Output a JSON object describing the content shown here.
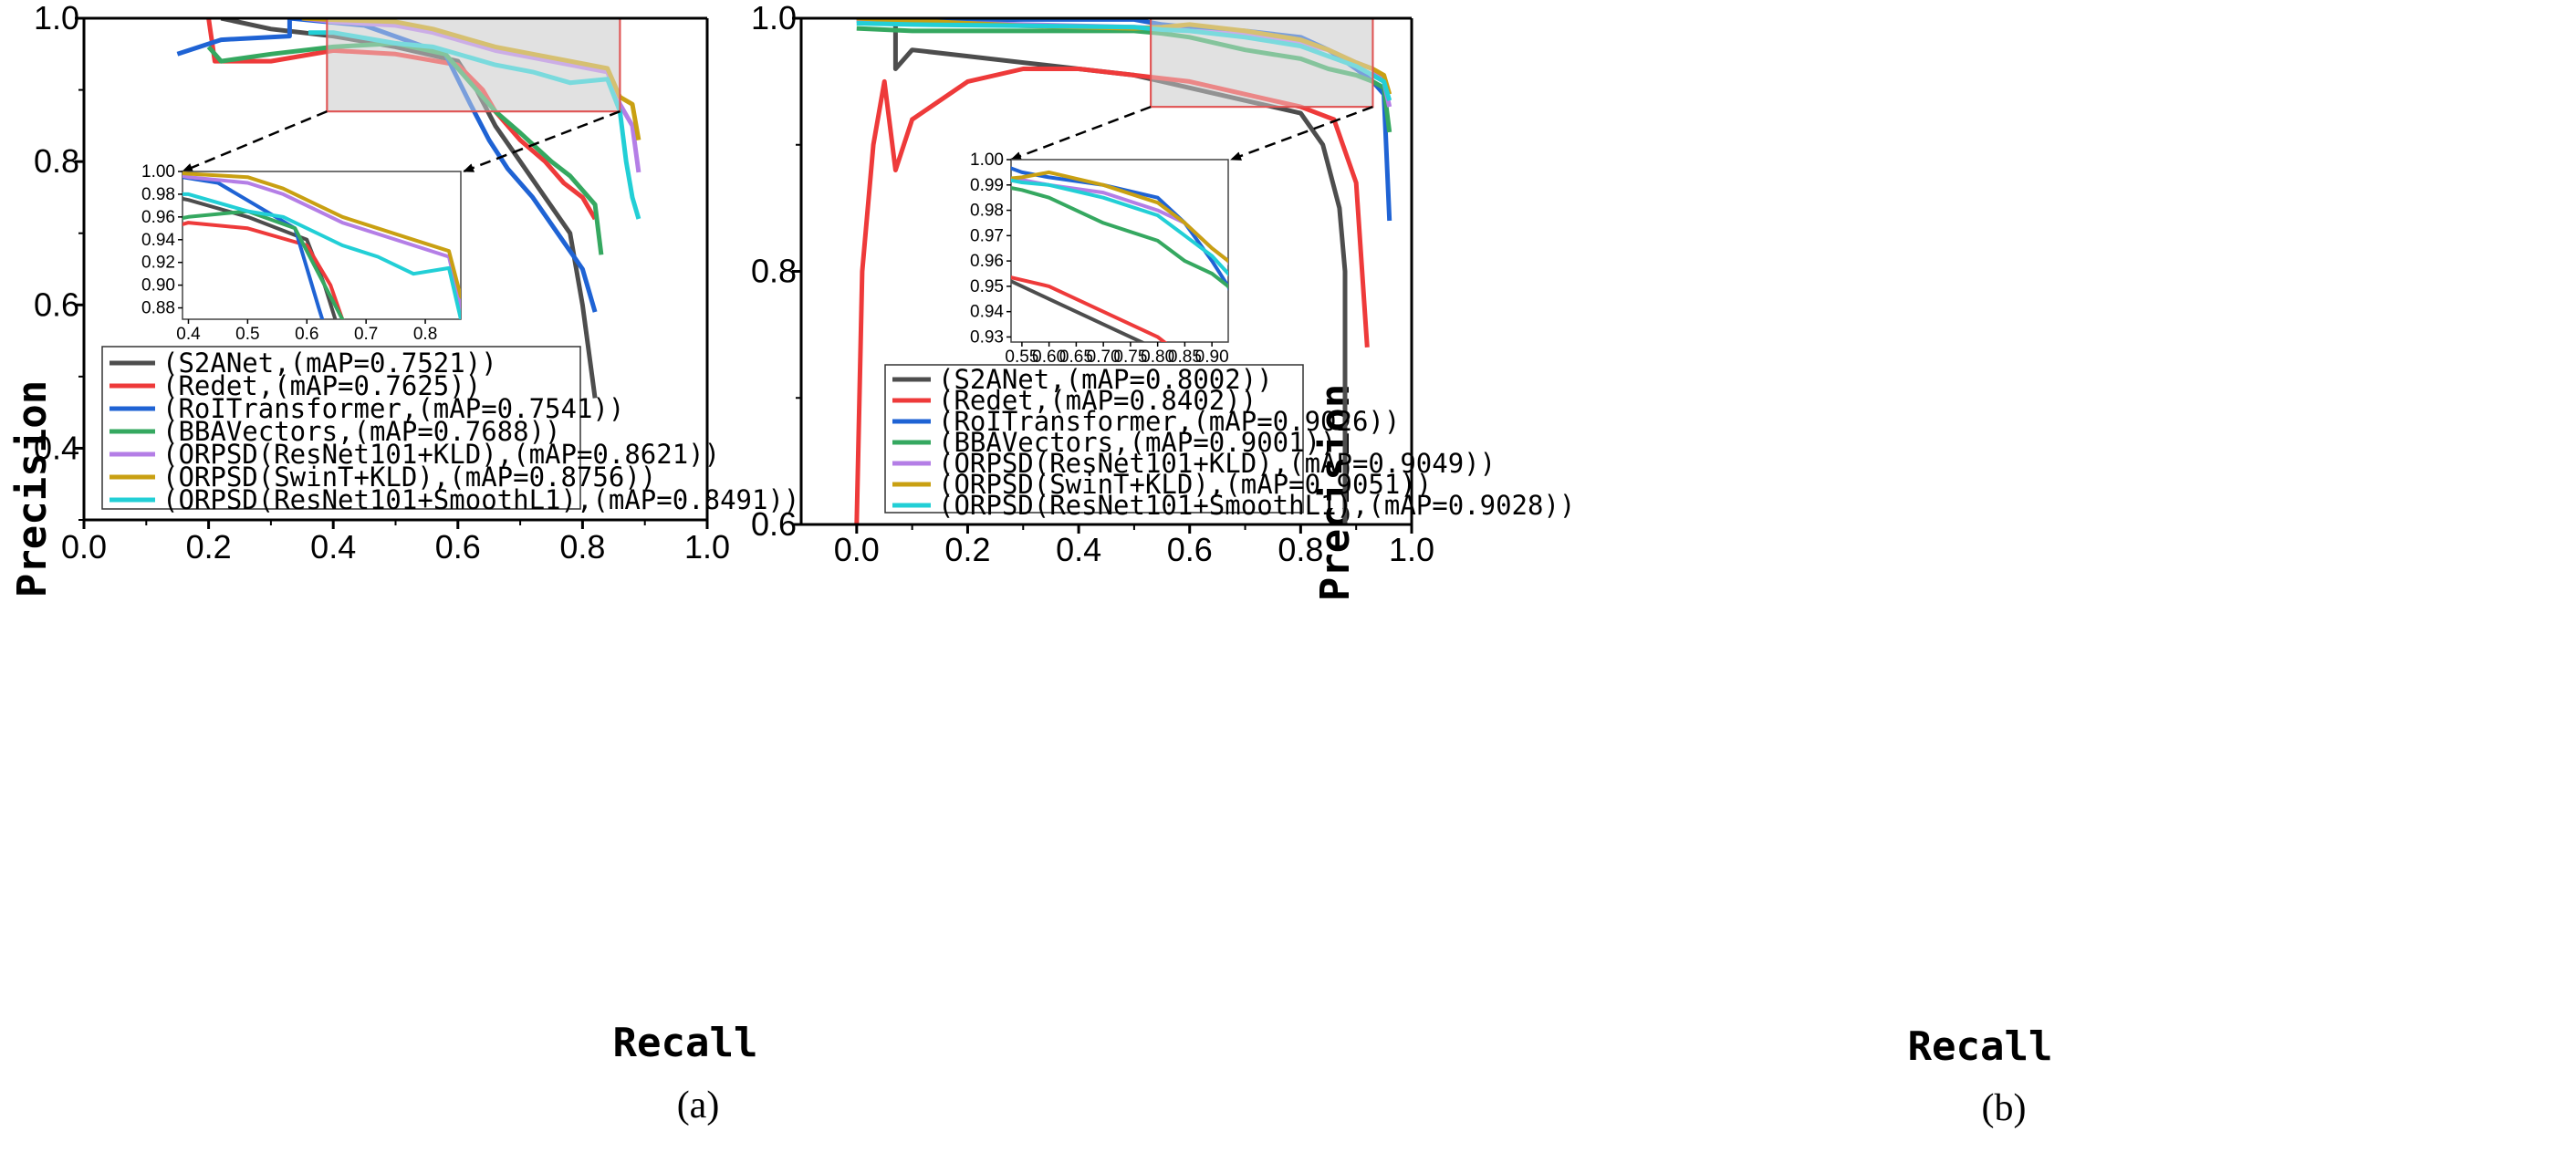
{
  "colors": {
    "S2ANet": "#4d4d4d",
    "Redet": "#ee3a3a",
    "RoITransformer": "#1f63d4",
    "BBAVectors": "#35a860",
    "ORPSD_R101_KLD": "#b47ee6",
    "ORPSD_SwinT_KLD": "#c9a012",
    "ORPSD_R101_SmoothL1": "#22cfd6"
  },
  "chart_data": [
    {
      "type": "line",
      "caption": "(a)",
      "xlabel": "Recall",
      "ylabel": "Precision",
      "xlim": [
        0.0,
        1.0
      ],
      "ylim": [
        0.3,
        1.0
      ],
      "xticks": [
        "0.0",
        "0.2",
        "0.4",
        "0.6",
        "0.8",
        "1.0"
      ],
      "yticks": [
        "0.4",
        "0.6",
        "0.8",
        "1.0"
      ],
      "legend": [
        "(S2ANet,(mAP=0.7521))",
        "(Redet,(mAP=0.7625))",
        "(RoITransformer,(mAP=0.7541))",
        "(BBAVectors,(mAP=0.7688))",
        "(ORPSD(ResNet101+KLD),(mAP=0.8621))",
        "(ORPSD(SwinT+KLD),(mAP=0.8756))",
        "(ORPSD(ResNet101+SmoothL1),(mAP=0.8491))"
      ],
      "series": [
        {
          "name": "S2ANet",
          "x": [
            0.22,
            0.3,
            0.4,
            0.5,
            0.6,
            0.63,
            0.66,
            0.7,
            0.74,
            0.78,
            0.8,
            0.82
          ],
          "y": [
            1.0,
            0.985,
            0.975,
            0.96,
            0.94,
            0.9,
            0.85,
            0.8,
            0.75,
            0.7,
            0.6,
            0.47
          ]
        },
        {
          "name": "Redet",
          "x": [
            0.2,
            0.21,
            0.3,
            0.4,
            0.5,
            0.6,
            0.64,
            0.66,
            0.7,
            0.74,
            0.77,
            0.8,
            0.82
          ],
          "y": [
            1.0,
            0.94,
            0.94,
            0.955,
            0.95,
            0.935,
            0.9,
            0.87,
            0.83,
            0.8,
            0.77,
            0.75,
            0.72
          ]
        },
        {
          "name": "RoITransformer",
          "x": [
            0.15,
            0.22,
            0.33,
            0.33,
            0.45,
            0.58,
            0.62,
            0.65,
            0.68,
            0.72,
            0.76,
            0.8,
            0.82
          ],
          "y": [
            0.95,
            0.97,
            0.975,
            1.0,
            0.99,
            0.95,
            0.88,
            0.83,
            0.79,
            0.75,
            0.7,
            0.65,
            0.59
          ]
        },
        {
          "name": "BBAVectors",
          "x": [
            0.2,
            0.22,
            0.3,
            0.4,
            0.5,
            0.58,
            0.63,
            0.66,
            0.7,
            0.75,
            0.78,
            0.82,
            0.83
          ],
          "y": [
            0.96,
            0.94,
            0.95,
            0.96,
            0.965,
            0.95,
            0.9,
            0.87,
            0.84,
            0.8,
            0.78,
            0.74,
            0.67
          ]
        },
        {
          "name": "ORPSD(ResNet101+KLD)",
          "x": [
            0.35,
            0.4,
            0.5,
            0.56,
            0.62,
            0.66,
            0.72,
            0.78,
            0.84,
            0.86,
            0.88,
            0.89
          ],
          "y": [
            1.0,
            0.995,
            0.99,
            0.98,
            0.965,
            0.955,
            0.945,
            0.935,
            0.925,
            0.88,
            0.85,
            0.785
          ]
        },
        {
          "name": "ORPSD(SwinT+KLD)",
          "x": [
            0.35,
            0.4,
            0.5,
            0.56,
            0.62,
            0.66,
            0.72,
            0.78,
            0.84,
            0.86,
            0.88,
            0.89
          ],
          "y": [
            1.0,
            0.998,
            0.995,
            0.985,
            0.97,
            0.96,
            0.95,
            0.94,
            0.93,
            0.89,
            0.88,
            0.83
          ]
        },
        {
          "name": "ORPSD(ResNet101+SmoothL1)",
          "x": [
            0.36,
            0.4,
            0.5,
            0.56,
            0.62,
            0.66,
            0.72,
            0.78,
            0.84,
            0.86,
            0.87,
            0.88,
            0.89
          ],
          "y": [
            0.98,
            0.98,
            0.965,
            0.96,
            0.945,
            0.935,
            0.925,
            0.91,
            0.915,
            0.87,
            0.8,
            0.75,
            0.72
          ]
        }
      ],
      "zoom_region": {
        "x": [
          0.39,
          0.86
        ],
        "y": [
          0.87,
          1.0
        ]
      },
      "inset": {
        "xlim": [
          0.39,
          0.86
        ],
        "ylim": [
          0.87,
          1.0
        ],
        "xticks": [
          "0.4",
          "0.5",
          "0.6",
          "0.7",
          "0.8"
        ],
        "yticks": [
          "0.88",
          "0.90",
          "0.92",
          "0.94",
          "0.96",
          "0.98",
          "1.00"
        ]
      }
    },
    {
      "type": "line",
      "caption": "(b)",
      "xlabel": "Recall",
      "ylabel": "Precision",
      "xlim": [
        -0.1,
        1.0
      ],
      "ylim": [
        0.6,
        1.0
      ],
      "xticks": [
        "0.0",
        "0.2",
        "0.4",
        "0.6",
        "0.8",
        "1.0"
      ],
      "yticks": [
        "0.6",
        "0.8",
        "1.0"
      ],
      "legend": [
        "(S2ANet,(mAP=0.8002))",
        "(Redet,(mAP=0.8402))",
        "(RoITransformer,(mAP=0.9026))",
        "(BBAVectors,(mAP=0.9001))",
        "(ORPSD(ResNet101+KLD),(mAP=0.9049))",
        "(ORPSD(SwinT+KLD),(mAP=0.9051))",
        "(ORPSD(ResNet101+SmoothL1),(mAP=0.9028))"
      ],
      "series": [
        {
          "name": "S2ANet",
          "x": [
            0.07,
            0.07,
            0.1,
            0.2,
            0.3,
            0.4,
            0.5,
            0.6,
            0.7,
            0.8,
            0.84,
            0.87,
            0.88,
            0.88
          ],
          "y": [
            1.0,
            0.96,
            0.975,
            0.97,
            0.965,
            0.96,
            0.955,
            0.945,
            0.935,
            0.925,
            0.9,
            0.85,
            0.8,
            0.6
          ]
        },
        {
          "name": "Redet",
          "x": [
            0.0,
            0.01,
            0.03,
            0.05,
            0.07,
            0.1,
            0.2,
            0.3,
            0.4,
            0.5,
            0.6,
            0.7,
            0.8,
            0.86,
            0.9,
            0.92
          ],
          "y": [
            0.6,
            0.8,
            0.9,
            0.95,
            0.88,
            0.92,
            0.95,
            0.96,
            0.96,
            0.955,
            0.95,
            0.94,
            0.93,
            0.92,
            0.87,
            0.74
          ]
        },
        {
          "name": "RoITransformer",
          "x": [
            0.0,
            0.1,
            0.3,
            0.5,
            0.55,
            0.6,
            0.7,
            0.8,
            0.85,
            0.9,
            0.93,
            0.95,
            0.96
          ],
          "y": [
            0.998,
            0.998,
            0.999,
            0.999,
            0.995,
            0.993,
            0.99,
            0.985,
            0.975,
            0.96,
            0.95,
            0.94,
            0.84
          ]
        },
        {
          "name": "BBAVectors",
          "x": [
            0.0,
            0.1,
            0.3,
            0.5,
            0.55,
            0.6,
            0.7,
            0.8,
            0.85,
            0.9,
            0.93,
            0.95,
            0.96
          ],
          "y": [
            0.992,
            0.99,
            0.99,
            0.99,
            0.988,
            0.985,
            0.975,
            0.968,
            0.96,
            0.955,
            0.95,
            0.945,
            0.91
          ]
        },
        {
          "name": "ORPSD(ResNet101+KLD)",
          "x": [
            0.0,
            0.1,
            0.3,
            0.5,
            0.55,
            0.6,
            0.7,
            0.8,
            0.85,
            0.9,
            0.93,
            0.95,
            0.96
          ],
          "y": [
            0.998,
            0.997,
            0.995,
            0.993,
            0.992,
            0.99,
            0.987,
            0.98,
            0.975,
            0.965,
            0.96,
            0.95,
            0.93
          ]
        },
        {
          "name": "ORPSD(SwinT+KLD)",
          "x": [
            0.0,
            0.1,
            0.3,
            0.5,
            0.55,
            0.6,
            0.7,
            0.8,
            0.85,
            0.9,
            0.93,
            0.95,
            0.96
          ],
          "y": [
            1.0,
            0.998,
            0.994,
            0.992,
            0.993,
            0.995,
            0.99,
            0.983,
            0.975,
            0.965,
            0.96,
            0.955,
            0.94
          ]
        },
        {
          "name": "ORPSD(ResNet101+SmoothL1)",
          "x": [
            0.0,
            0.1,
            0.3,
            0.5,
            0.55,
            0.6,
            0.7,
            0.8,
            0.85,
            0.9,
            0.93,
            0.95,
            0.96
          ],
          "y": [
            0.996,
            0.995,
            0.994,
            0.993,
            0.991,
            0.99,
            0.985,
            0.978,
            0.97,
            0.962,
            0.955,
            0.95,
            0.935
          ]
        }
      ],
      "zoom_region": {
        "x": [
          0.53,
          0.93
        ],
        "y": [
          0.93,
          1.0
        ]
      },
      "inset": {
        "xlim": [
          0.53,
          0.93
        ],
        "ylim": [
          0.928,
          1.0
        ],
        "xticks": [
          "0.55",
          "0.60",
          "0.65",
          "0.70",
          "0.75",
          "0.80",
          "0.85",
          "0.90"
        ],
        "yticks": [
          "0.93",
          "0.94",
          "0.95",
          "0.96",
          "0.97",
          "0.98",
          "0.99",
          "1.00"
        ]
      }
    }
  ]
}
